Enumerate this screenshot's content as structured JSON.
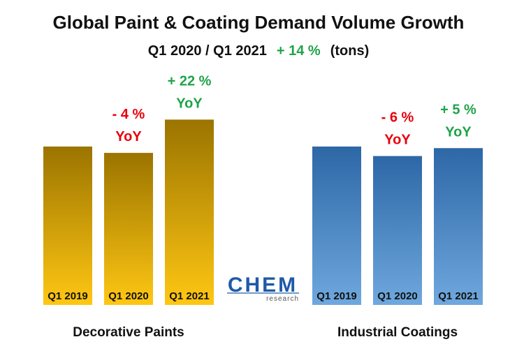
{
  "chart_data": {
    "type": "bar",
    "title": "Global Paint & Coating Demand Volume Growth",
    "subtitle": {
      "period": "Q1 2020 / Q1 2021",
      "change": "+ 14 %",
      "unit": "(tons)"
    },
    "logo": {
      "text": "CHEM",
      "subtext": "research"
    },
    "groups": [
      {
        "name": "Decorative Paints",
        "categories": [
          "Q1 2019",
          "Q1 2020",
          "Q1 2021"
        ],
        "values": [
          100,
          96,
          117
        ],
        "annotations": [
          null,
          {
            "change": "- 4 %",
            "suffix": "YoY",
            "color": "#e8000b"
          },
          {
            "change": "+ 22 %",
            "suffix": "YoY",
            "color": "#1fa34a"
          }
        ],
        "color_top": "#9b7400",
        "color_bottom": "#ffc713"
      },
      {
        "name": "Industrial Coatings",
        "categories": [
          "Q1 2019",
          "Q1 2020",
          "Q1 2021"
        ],
        "values": [
          100,
          94,
          99
        ],
        "annotations": [
          null,
          {
            "change": "- 6 %",
            "suffix": "YoY",
            "color": "#e8000b"
          },
          {
            "change": "+ 5 %",
            "suffix": "YoY",
            "color": "#1fa34a"
          }
        ],
        "color_top": "#2d67a6",
        "color_bottom": "#6fa8de"
      }
    ],
    "colors": {
      "positive": "#1fa34a",
      "negative": "#e8000b",
      "text": "#111111"
    }
  }
}
